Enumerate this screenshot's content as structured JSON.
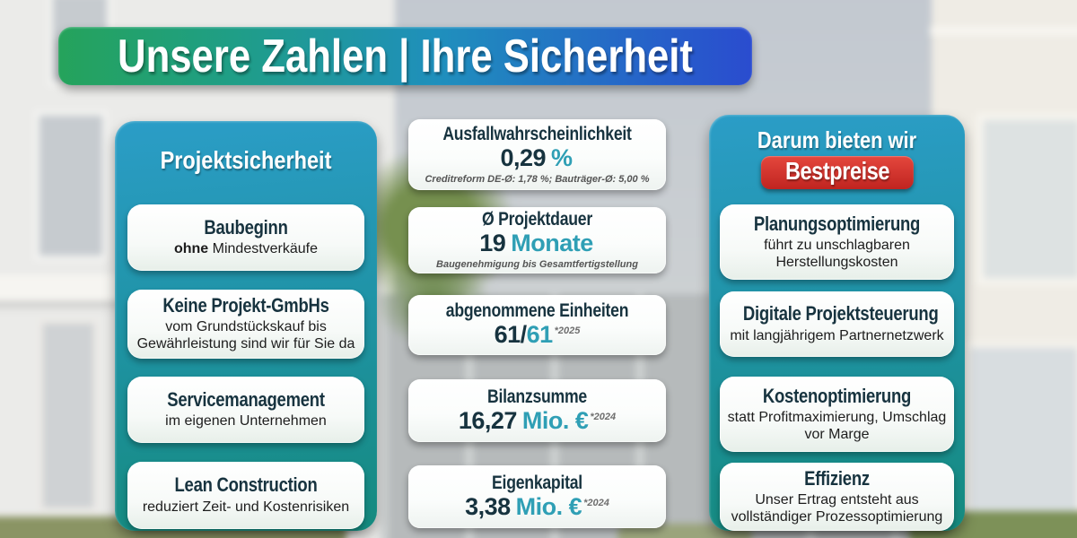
{
  "title_banner": {
    "text": "Unsere Zahlen | Ihre Sicherheit"
  },
  "left_panel": {
    "header": "Projektsicherheit",
    "cards": [
      {
        "title": "Baubeginn",
        "subtitle_bold": "ohne",
        "subtitle": " Mindestverkäufe"
      },
      {
        "title": "Keine Projekt-GmbHs",
        "subtitle": "vom Grundstückskauf bis Gewährleistung sind wir für Sie da"
      },
      {
        "title": "Servicemanagement",
        "subtitle": "im eigenen Unternehmen"
      },
      {
        "title": "Lean Construction",
        "subtitle": "reduziert Zeit- und Kostenrisiken"
      }
    ]
  },
  "middle_cards": [
    {
      "title": "Ausfallwahrscheinlichkeit",
      "value_main": "0,29",
      "value_accent": "%",
      "superscript": "",
      "subtext": "Creditreform DE-Ø: 1,78 %; Bauträger-Ø: 5,00 %"
    },
    {
      "title": "Ø Projektdauer",
      "value_main": "19",
      "value_accent": "Monate",
      "superscript": "",
      "subtext": "Baugenehmigung bis Gesamtfertigstellung"
    },
    {
      "title": "abgenommene Einheiten",
      "value_main": "61/",
      "value_accent": "61",
      "superscript": "*2025",
      "subtext": ""
    },
    {
      "title": "Bilanzsumme",
      "value_main": "16,27",
      "value_accent": "Mio. €",
      "superscript": "*2024",
      "subtext": ""
    },
    {
      "title": "Eigenkapital",
      "value_main": "3,38",
      "value_accent": "Mio. €",
      "superscript": "*2024",
      "subtext": ""
    }
  ],
  "right_panel": {
    "header": "Darum bieten wir",
    "badge": "Bestpreise",
    "cards": [
      {
        "title": "Planungsoptimierung",
        "subtitle": "führt zu unschlagbaren Herstellungskosten"
      },
      {
        "title": "Digitale Projektsteuerung",
        "subtitle": "mit langjährigem Partnernetzwerk"
      },
      {
        "title": "Kostenoptimierung",
        "subtitle": "statt Profitmaximierung, Umschlag vor Marge"
      },
      {
        "title": "Effizienz",
        "subtitle": "Unser Ertrag entsteht aus vollständiger Prozessoptimierung"
      }
    ]
  },
  "colors": {
    "accent_teal": "#2f9fb5",
    "dark_navy": "#17333f",
    "badge_red": "#c92722",
    "panel_top": "#2b9dc7",
    "panel_bottom": "#158a7e",
    "title_left_green": "#25a35b",
    "title_right_blue": "#2a4ccf"
  }
}
